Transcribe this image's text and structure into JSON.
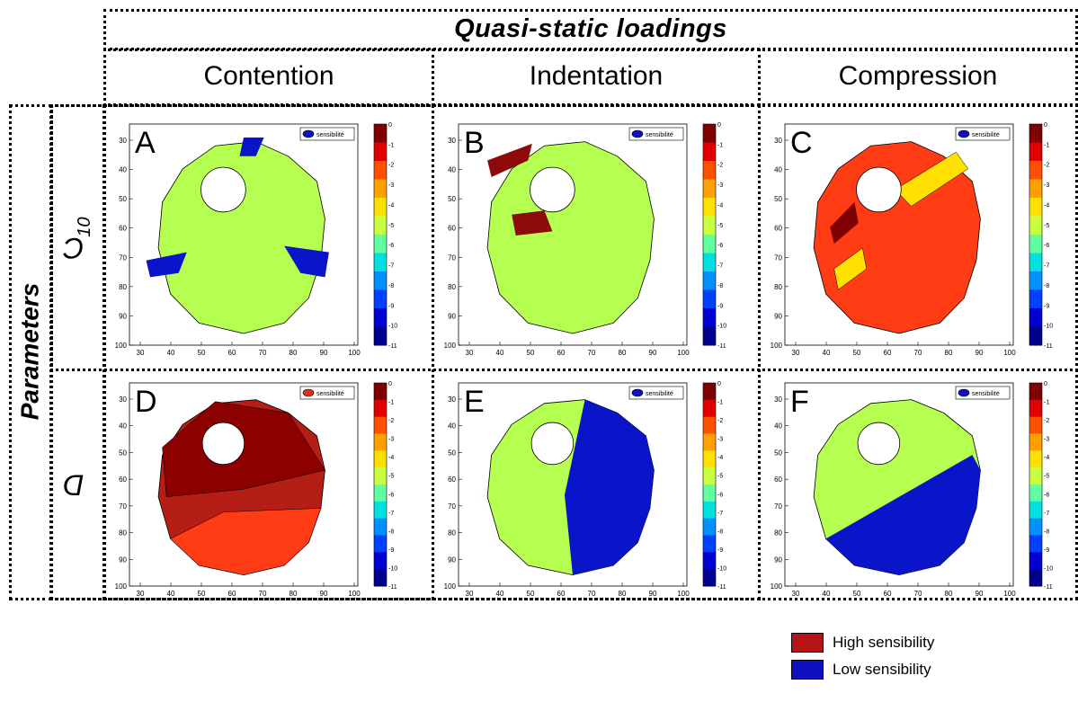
{
  "header": {
    "title": "Quasi-static loadings"
  },
  "columns": [
    {
      "label": "Contention"
    },
    {
      "label": "Indentation"
    },
    {
      "label": "Compression"
    }
  ],
  "rows_header": {
    "label": "Parameters"
  },
  "rows": [
    {
      "label": "C",
      "subscript": "10"
    },
    {
      "label": "D",
      "subscript": ""
    }
  ],
  "panels": [
    {
      "letter": "A",
      "legend_text": "sensibilité",
      "fill": "#b4ff50",
      "legend_fill": "#1010c8"
    },
    {
      "letter": "B",
      "legend_text": "sensibilité",
      "fill": "#b4ff50",
      "legend_fill": "#1010c8"
    },
    {
      "letter": "C",
      "legend_text": "sensibilité",
      "fill": "#ff3c14",
      "legend_fill": "#1010c8"
    },
    {
      "letter": "D",
      "legend_text": "sensibilité",
      "fill": "#b41e14",
      "legend_fill": "#e03020"
    },
    {
      "letter": "E",
      "legend_text": "sensibilité",
      "fill": "#b4ff50",
      "legend_fill": "#1010c8"
    },
    {
      "letter": "F",
      "legend_text": "sensibilité",
      "fill": "#b4ff50",
      "legend_fill": "#1010c8"
    }
  ],
  "axes": {
    "x_ticks": [
      "30",
      "40",
      "50",
      "60",
      "70",
      "80",
      "90",
      "100"
    ],
    "y_ticks": [
      "30",
      "40",
      "50",
      "60",
      "70",
      "80",
      "90",
      "100"
    ],
    "colorbar_ticks": [
      "0",
      "-1",
      "-2",
      "-3",
      "-4",
      "-5",
      "-6",
      "-7",
      "-8",
      "-9",
      "-10",
      "-11"
    ]
  },
  "legend": {
    "items": [
      {
        "label": "High sensibility",
        "color": "#b41414"
      },
      {
        "label": "Low sensibility",
        "color": "#1010c0"
      }
    ]
  }
}
